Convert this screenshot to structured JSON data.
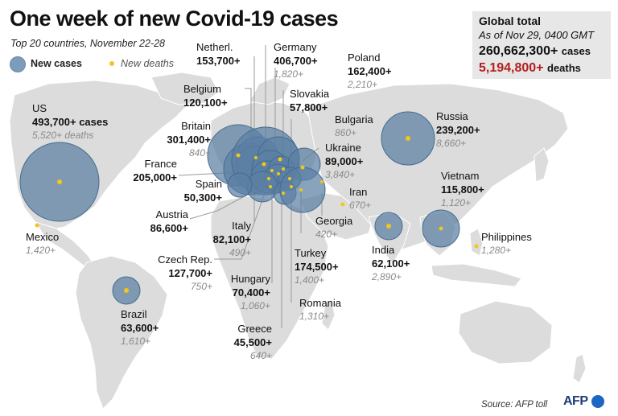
{
  "title": "One week of new Covid-19 cases",
  "subtitle": "Top 20 countries, November 22-28",
  "legend": {
    "cases": "New cases",
    "deaths": "New deaths"
  },
  "global": {
    "title": "Global total",
    "as_of": "As of Nov 29, 0400 GMT",
    "cases": "260,662,300+",
    "cases_unit": "cases",
    "deaths": "5,194,800+",
    "deaths_unit": "deaths"
  },
  "colors": {
    "bubble": "#5c7fa3",
    "death_dot": "#f2c61a",
    "land": "#dcdcdc",
    "deaths_total": "#b41e1e"
  },
  "countries": [
    {
      "name": "US",
      "cases": "493,700+ cases",
      "deaths": "5,520+ deaths"
    },
    {
      "name": "Mexico",
      "cases": "",
      "deaths": "1,420+"
    },
    {
      "name": "Brazil",
      "cases": "63,600+",
      "deaths": "1,610+"
    },
    {
      "name": "Britain",
      "cases": "301,400+",
      "deaths": "840+"
    },
    {
      "name": "France",
      "cases": "205,000+",
      "deaths": ""
    },
    {
      "name": "Spain",
      "cases": "50,300+",
      "deaths": ""
    },
    {
      "name": "Austria",
      "cases": "86,600+",
      "deaths": ""
    },
    {
      "name": "Belgium",
      "cases": "120,100+",
      "deaths": ""
    },
    {
      "name": "Netherl.",
      "cases": "153,700+",
      "deaths": ""
    },
    {
      "name": "Germany",
      "cases": "406,700+",
      "deaths": "1,820+"
    },
    {
      "name": "Poland",
      "cases": "162,400+",
      "deaths": "2,210+"
    },
    {
      "name": "Slovakia",
      "cases": "57,800+",
      "deaths": ""
    },
    {
      "name": "Bulgaria",
      "cases": "",
      "deaths": "860+"
    },
    {
      "name": "Ukraine",
      "cases": "89,000+",
      "deaths": "3,840+"
    },
    {
      "name": "Iran",
      "cases": "",
      "deaths": "670+"
    },
    {
      "name": "Georgia",
      "cases": "",
      "deaths": "420+"
    },
    {
      "name": "Italy",
      "cases": "82,100+",
      "deaths": "490+"
    },
    {
      "name": "Czech Rep.",
      "cases": "127,700+",
      "deaths": "750+"
    },
    {
      "name": "Hungary",
      "cases": "70,400+",
      "deaths": "1,060+"
    },
    {
      "name": "Turkey",
      "cases": "174,500+",
      "deaths": "1,400+"
    },
    {
      "name": "Romania",
      "cases": "",
      "deaths": "1,310+"
    },
    {
      "name": "Greece",
      "cases": "45,500+",
      "deaths": "640+"
    },
    {
      "name": "Russia",
      "cases": "239,200+",
      "deaths": "8,660+"
    },
    {
      "name": "Vietnam",
      "cases": "115,800+",
      "deaths": "1,120+"
    },
    {
      "name": "India",
      "cases": "62,100+",
      "deaths": "2,890+"
    },
    {
      "name": "Philippines",
      "cases": "",
      "deaths": "1,280+"
    }
  ],
  "source": "Source: AFP toll",
  "logo": "AFP"
}
